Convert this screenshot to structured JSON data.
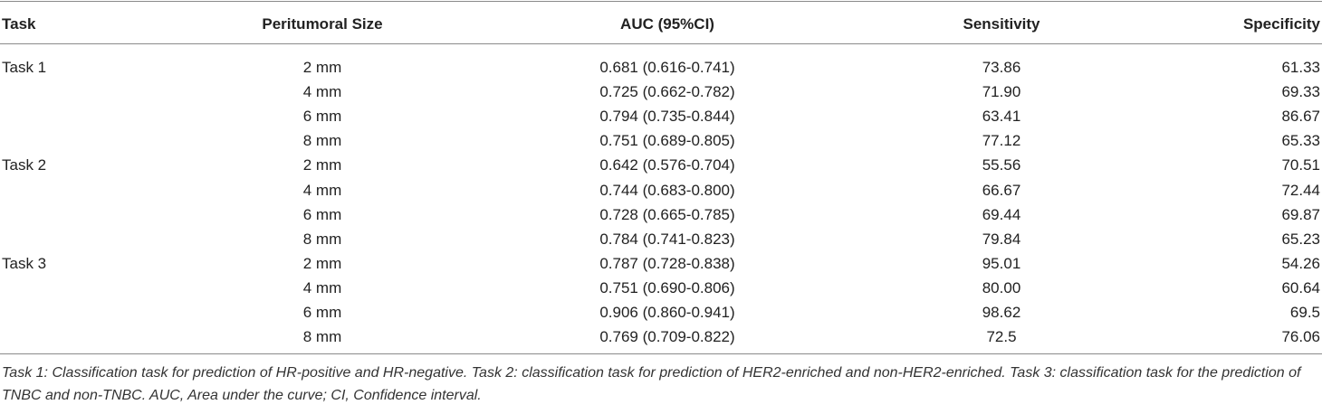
{
  "table": {
    "headers": [
      "Task",
      "Peritumoral Size",
      "AUC (95%CI)",
      "Sensitivity",
      "Specificity"
    ],
    "groups": [
      {
        "task": "Task 1",
        "rows": [
          [
            "2 mm",
            "0.681 (0.616-0.741)",
            "73.86",
            "61.33"
          ],
          [
            "4 mm",
            "0.725 (0.662-0.782)",
            "71.90",
            "69.33"
          ],
          [
            "6 mm",
            "0.794 (0.735-0.844)",
            "63.41",
            "86.67"
          ],
          [
            "8 mm",
            "0.751 (0.689-0.805)",
            "77.12",
            "65.33"
          ]
        ]
      },
      {
        "task": "Task 2",
        "rows": [
          [
            "2 mm",
            "0.642 (0.576-0.704)",
            "55.56",
            "70.51"
          ],
          [
            "4 mm",
            "0.744 (0.683-0.800)",
            "66.67",
            "72.44"
          ],
          [
            "6 mm",
            "0.728 (0.665-0.785)",
            "69.44",
            "69.87"
          ],
          [
            "8 mm",
            "0.784 (0.741-0.823)",
            "79.84",
            "65.23"
          ]
        ]
      },
      {
        "task": "Task 3",
        "rows": [
          [
            "2 mm",
            "0.787 (0.728-0.838)",
            "95.01",
            "54.26"
          ],
          [
            "4 mm",
            "0.751 (0.690-0.806)",
            "80.00",
            "60.64"
          ],
          [
            "6 mm",
            "0.906 (0.860-0.941)",
            "98.62",
            "69.5"
          ],
          [
            "8 mm",
            "0.769 (0.709-0.822)",
            "72.5",
            "76.06"
          ]
        ]
      }
    ],
    "footnote": "Task 1: Classification task for prediction of HR-positive and HR-negative. Task 2: classification task for prediction of HER2-enriched and non-HER2-enriched. Task 3: classification task for the prediction of TNBC and non-TNBC. AUC, Area under the curve; CI, Confidence interval."
  }
}
